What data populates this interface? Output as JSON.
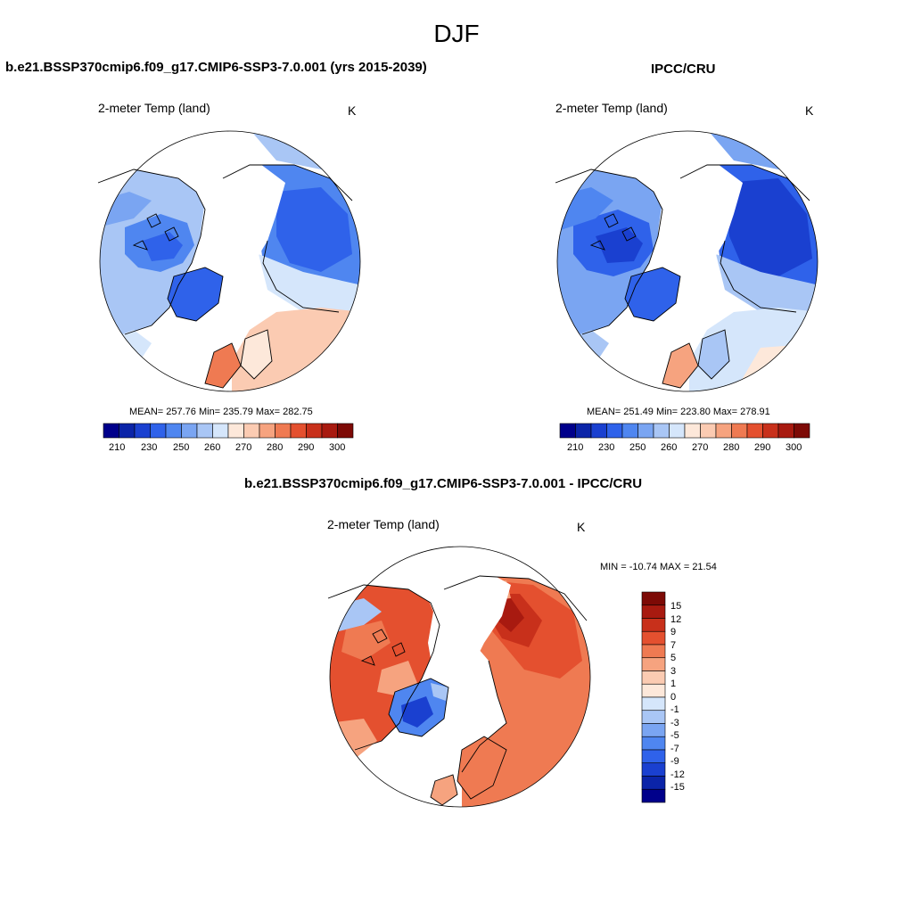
{
  "page_title": "DJF",
  "panels": [
    {
      "title": "b.e21.BSSP370cmip6.f09_g17.CMIP6-SSP3-7.0.001 (yrs 2015-2039)",
      "variable": "2-meter Temp (land)",
      "units": "K",
      "stats": "MEAN= 257.76  Min= 235.79  Max= 282.75",
      "colorbar_ticks": [
        "210",
        "230",
        "250",
        "260",
        "270",
        "280",
        "290",
        "300"
      ]
    },
    {
      "title": "IPCC/CRU",
      "variable": "2-meter Temp (land)",
      "units": "K",
      "stats": "MEAN= 251.49  Min= 223.80  Max= 278.91",
      "colorbar_ticks": [
        "210",
        "230",
        "250",
        "260",
        "270",
        "280",
        "290",
        "300"
      ]
    },
    {
      "title": "b.e21.BSSP370cmip6.f09_g17.CMIP6-SSP3-7.0.001 - IPCC/CRU",
      "variable": "2-meter Temp (land)",
      "units": "K",
      "stats": "MIN = -10.74 MAX =  21.54",
      "colorbar_ticks": [
        "15",
        "12",
        "9",
        "7",
        "5",
        "3",
        "1",
        "0",
        "-1",
        "-3",
        "-5",
        "-7",
        "-9",
        "-12",
        "-15"
      ]
    }
  ],
  "colors": {
    "abs_scale": [
      "#00008b",
      "#0b24a8",
      "#1a40d0",
      "#2f62ea",
      "#4f86f0",
      "#7aa5f2",
      "#a9c6f5",
      "#d5e6fb",
      "#fde8da",
      "#fbcbb2",
      "#f6a37f",
      "#ef7a52",
      "#e4502f",
      "#c8301b",
      "#a81a10",
      "#7d0a06"
    ],
    "diff_scale": [
      "#7d0a06",
      "#a81a10",
      "#c8301b",
      "#e4502f",
      "#ef7a52",
      "#f6a37f",
      "#fbcbb2",
      "#fde8da",
      "#d5e6fb",
      "#a9c6f5",
      "#7aa5f2",
      "#4f86f0",
      "#2f62ea",
      "#1a40d0",
      "#0b24a8",
      "#00008b"
    ]
  }
}
